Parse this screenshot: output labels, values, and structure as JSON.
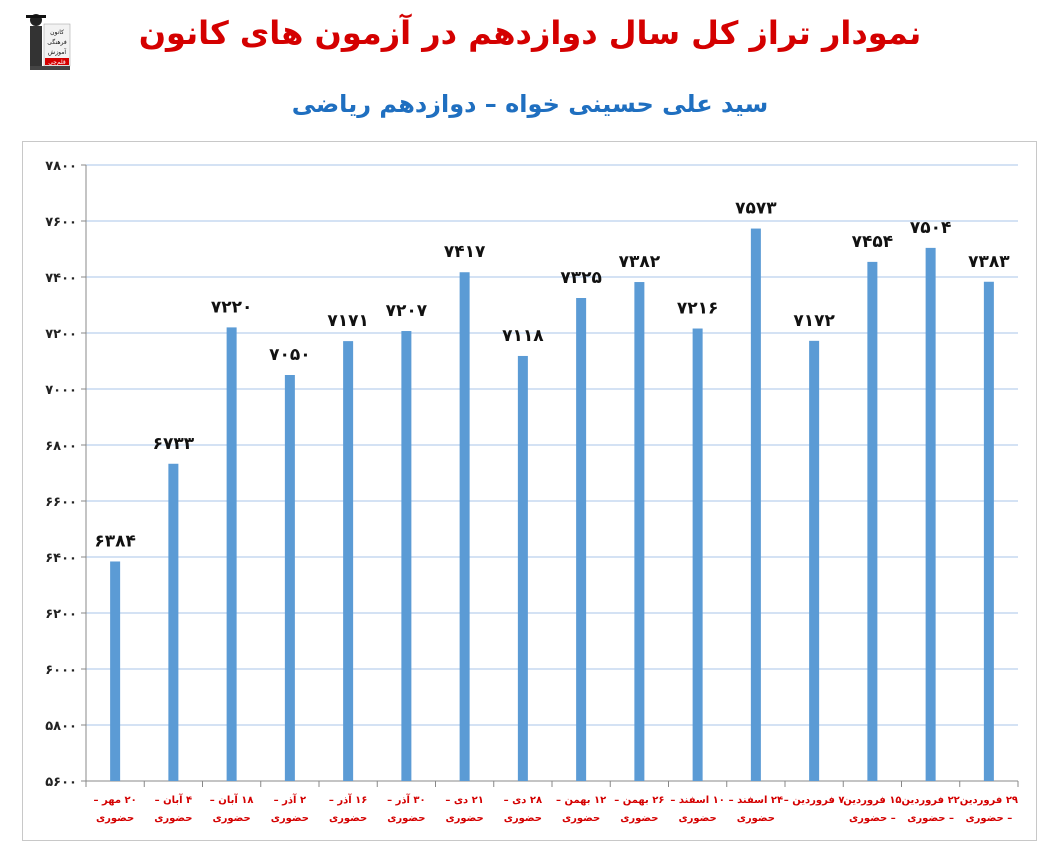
{
  "header": {
    "title": "نمودار تراز کل سال دوازدهم در آزمون های کانون",
    "subtitle": "سید علی حسینی خواه – دوازدهم ریاضی"
  },
  "logo": {
    "lines": [
      "کانون",
      "فرهنگی",
      "آموزش",
      "قلم‌چی"
    ]
  },
  "colors": {
    "title": "#d40000",
    "subtitle": "#1f6fc0",
    "bar": "#5b9bd5",
    "grid": "#a9c6e8",
    "xlabel": "#d40000"
  },
  "chart_data": {
    "type": "bar",
    "ylim": [
      5600,
      7800
    ],
    "yticks": [
      "۷۸۰۰",
      "۷۶۰۰",
      "۷۴۰۰",
      "۷۲۰۰",
      "۷۰۰۰",
      "۶۸۰۰",
      "۶۶۰۰",
      "۶۴۰۰",
      "۶۲۰۰",
      "۶۰۰۰",
      "۵۸۰۰",
      "۵۶۰۰"
    ],
    "grid": true,
    "categories": [
      [
        "۲۰ مهر –",
        "حضوری"
      ],
      [
        "۴ آبان –",
        "حضوری"
      ],
      [
        "۱۸ آبان –",
        "حضوری"
      ],
      [
        "۲ آذر –",
        "حضوری"
      ],
      [
        "۱۶ آذر –",
        "حضوری"
      ],
      [
        "۳۰ آذر –",
        "حضوری"
      ],
      [
        "۲۱ دی –",
        "حضوری"
      ],
      [
        "۲۸ دی –",
        "حضوری"
      ],
      [
        "۱۲ بهمن –",
        "حضوری"
      ],
      [
        "۲۶ بهمن –",
        "حضوری"
      ],
      [
        "۱۰ اسفند –",
        "حضوری"
      ],
      [
        "۲۴ اسفند –",
        "حضوری"
      ],
      [
        "۷ فروردین –",
        ""
      ],
      [
        "۱۵ فروردین",
        "– حضوری"
      ],
      [
        "۲۲ فروردین",
        "– حضوری"
      ],
      [
        "۲۹ فروردین",
        "– حضوری"
      ]
    ],
    "values": [
      6384,
      6733,
      7220,
      7050,
      7171,
      7207,
      7417,
      7118,
      7325,
      7382,
      7216,
      7573,
      7172,
      7454,
      7504,
      7383
    ],
    "data_labels": [
      "۶۳۸۴",
      "۶۷۳۳",
      "۷۲۲۰",
      "۷۰۵۰",
      "۷۱۷۱",
      "۷۲۰۷",
      "۷۴۱۷",
      "۷۱۱۸",
      "۷۳۲۵",
      "۷۳۸۲",
      "۷۲۱۶",
      "۷۵۷۳",
      "۷۱۷۲",
      "۷۴۵۴",
      "۷۵۰۴",
      "۷۳۸۳"
    ]
  }
}
